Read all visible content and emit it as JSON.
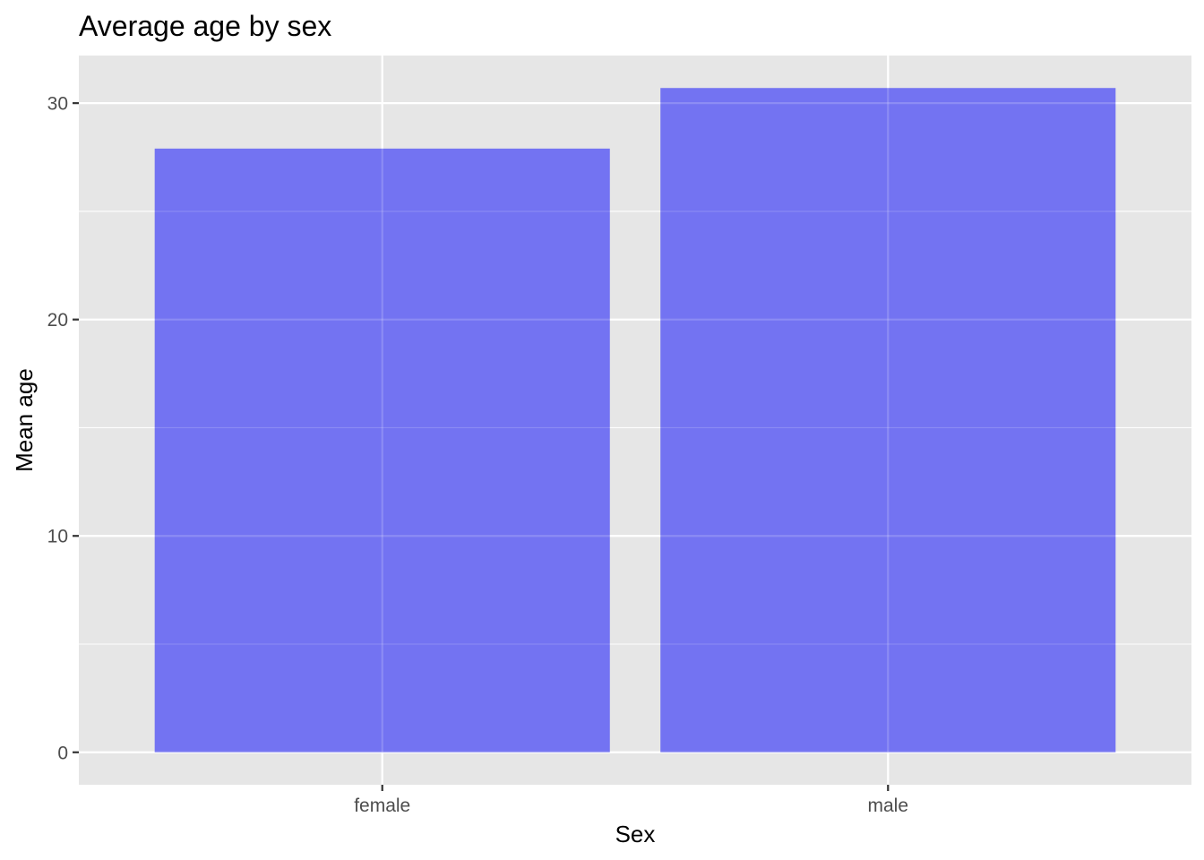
{
  "chart_data": {
    "type": "bar",
    "title": "Average age by sex",
    "xlabel": "Sex",
    "ylabel": "Mean age",
    "categories": [
      "female",
      "male"
    ],
    "values": [
      27.9,
      30.7
    ],
    "ylim": [
      -1.5,
      32.2
    ],
    "yticks": [
      0,
      10,
      20,
      30
    ],
    "yticks_minor": [
      5,
      15,
      25
    ],
    "grid": true,
    "legend": "none",
    "colors": {
      "bar": "#7373F2",
      "panel": "#E6E6E6",
      "grid": "#FFFFFF",
      "tick": "#333333"
    }
  }
}
